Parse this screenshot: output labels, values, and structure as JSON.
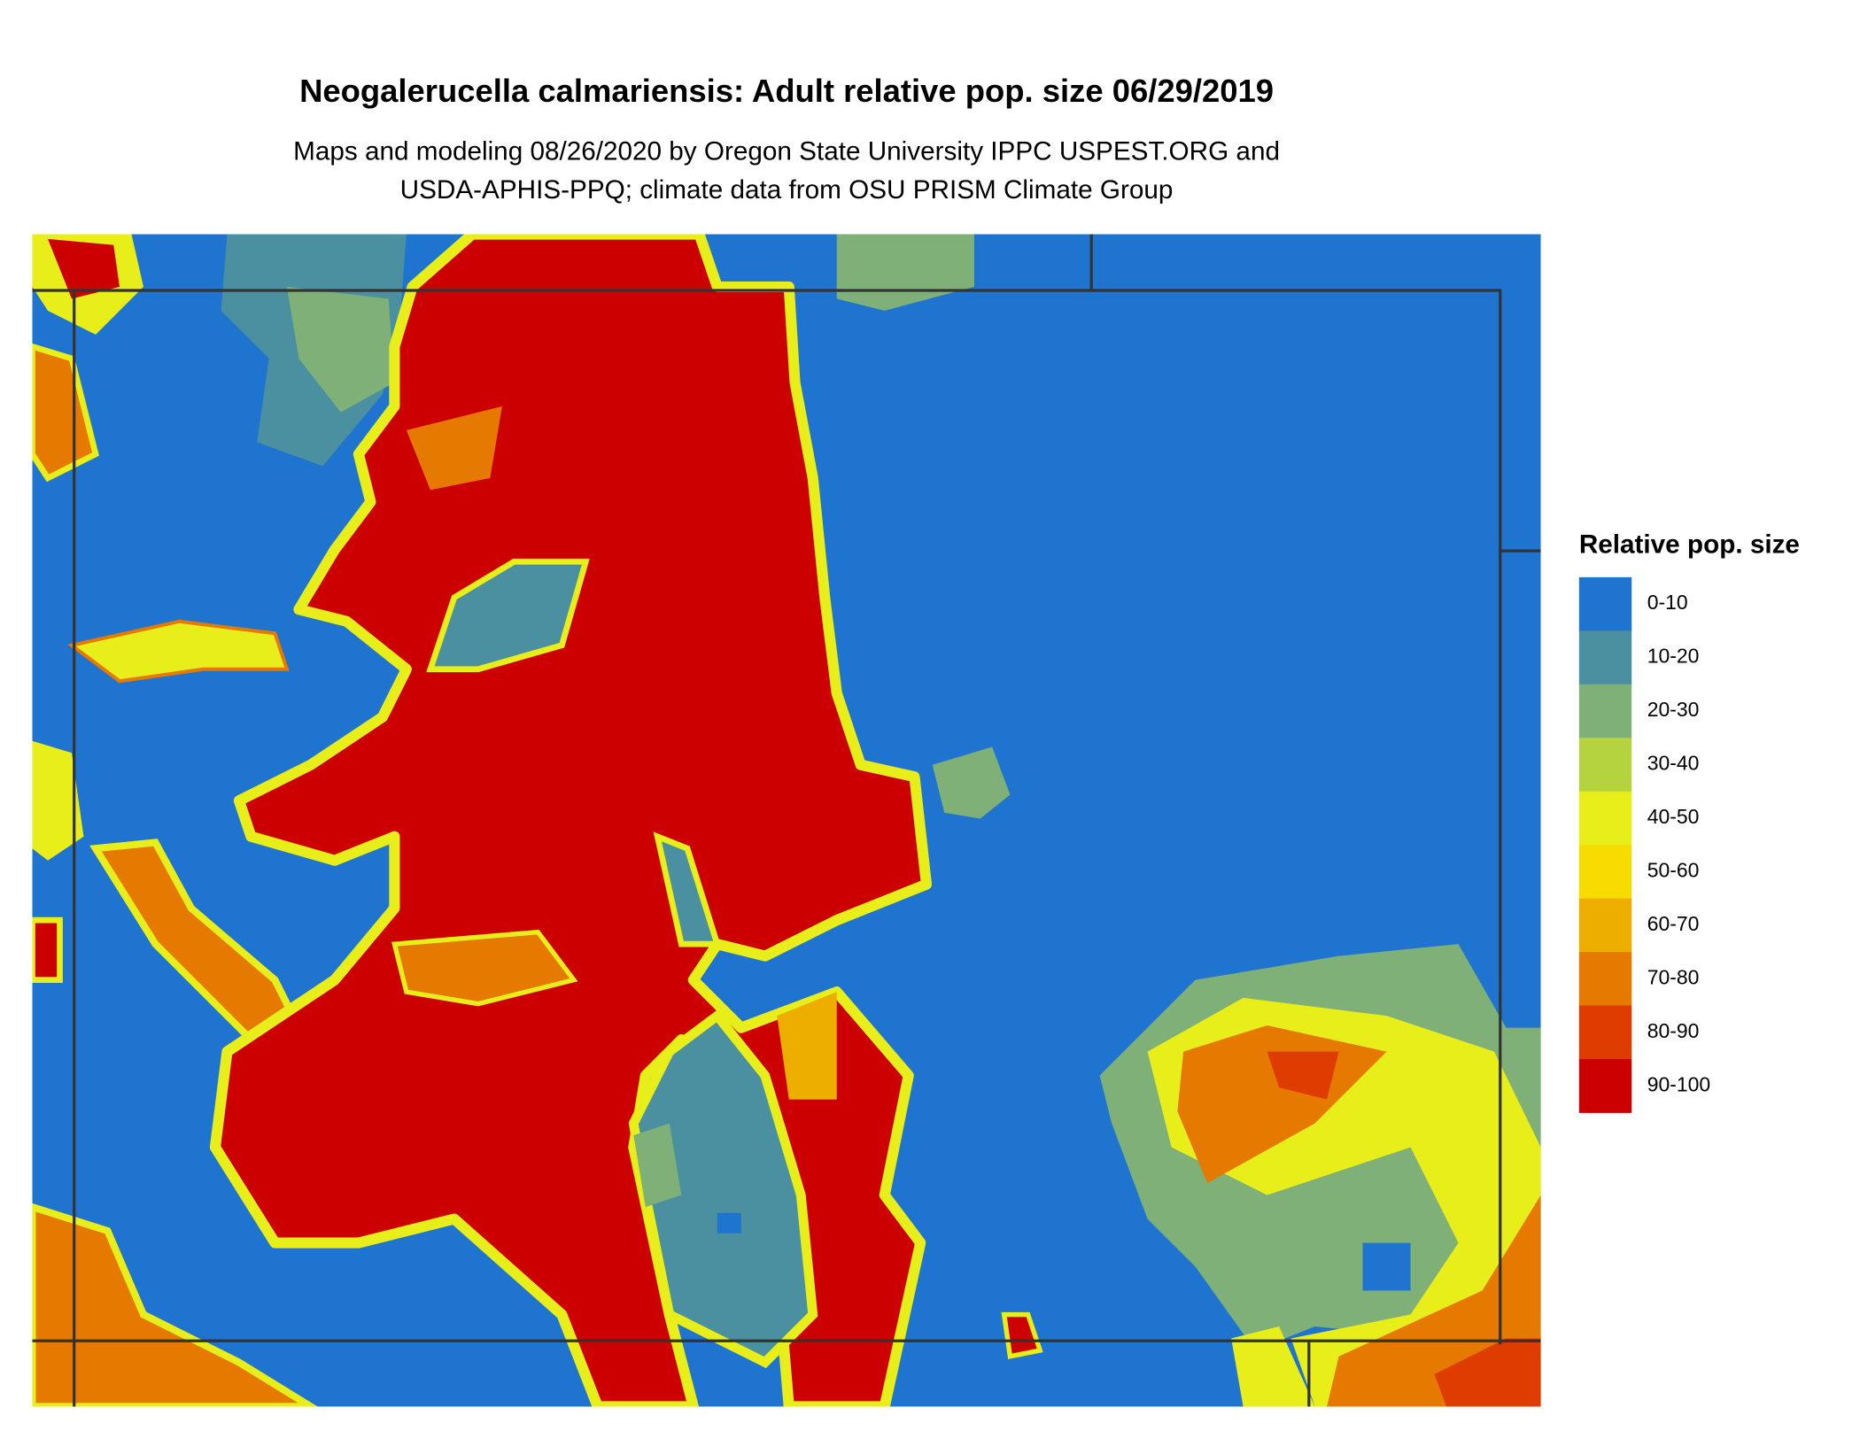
{
  "header": {
    "title": "Neogalerucella calmariensis: Adult relative pop. size 06/29/2019",
    "subtitle_lines": [
      "Maps and modeling 08/26/2020 by Oregon State University IPPC USPEST.ORG and",
      "USDA-APHIS-PPQ; climate data from OSU PRISM Climate Group"
    ]
  },
  "legend": {
    "title": "Relative pop. size",
    "items": [
      {
        "label": "0-10",
        "color": "#1f74d0"
      },
      {
        "label": "10-20",
        "color": "#4a90a0"
      },
      {
        "label": "20-30",
        "color": "#7fb077"
      },
      {
        "label": "30-40",
        "color": "#b5d23f"
      },
      {
        "label": "40-50",
        "color": "#e8ee1a"
      },
      {
        "label": "50-60",
        "color": "#f7dc00"
      },
      {
        "label": "60-70",
        "color": "#eeae00"
      },
      {
        "label": "70-80",
        "color": "#e67a00"
      },
      {
        "label": "80-90",
        "color": "#de3c00"
      },
      {
        "label": "90-100",
        "color": "#cc0000"
      }
    ]
  }
}
